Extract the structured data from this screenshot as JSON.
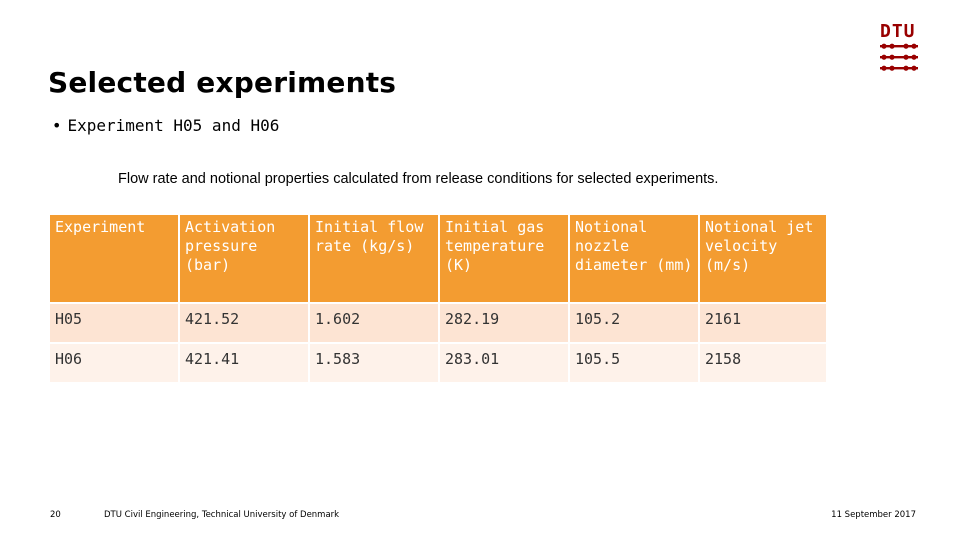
{
  "slide": {
    "title": "Selected experiments",
    "bullet": "Experiment H05 and H06",
    "caption": "Flow rate and notional properties calculated from release conditions for selected experiments."
  },
  "table": {
    "headers": [
      "Experiment",
      "Activation pressure (bar)",
      "Initial flow rate (kg/s)",
      "Initial gas temperature (K)",
      "Notional nozzle diameter (mm)",
      "Notional jet velocity (m/s)"
    ],
    "rows": [
      [
        "H05",
        "421.52",
        "1.602",
        "282.19",
        "105.2",
        "2161"
      ],
      [
        "H06",
        "421.41",
        "1.583",
        "283.01",
        "105.5",
        "2158"
      ]
    ]
  },
  "logo": {
    "text": "DTU"
  },
  "footer": {
    "page_number": "20",
    "institution": "DTU Civil Engineering, Technical University of Denmark",
    "date": "11 September 2017"
  },
  "colors": {
    "header_bg": "#f39c31",
    "row_odd": "#fde4d3",
    "row_even": "#fef2ea",
    "logo": "#990000"
  }
}
